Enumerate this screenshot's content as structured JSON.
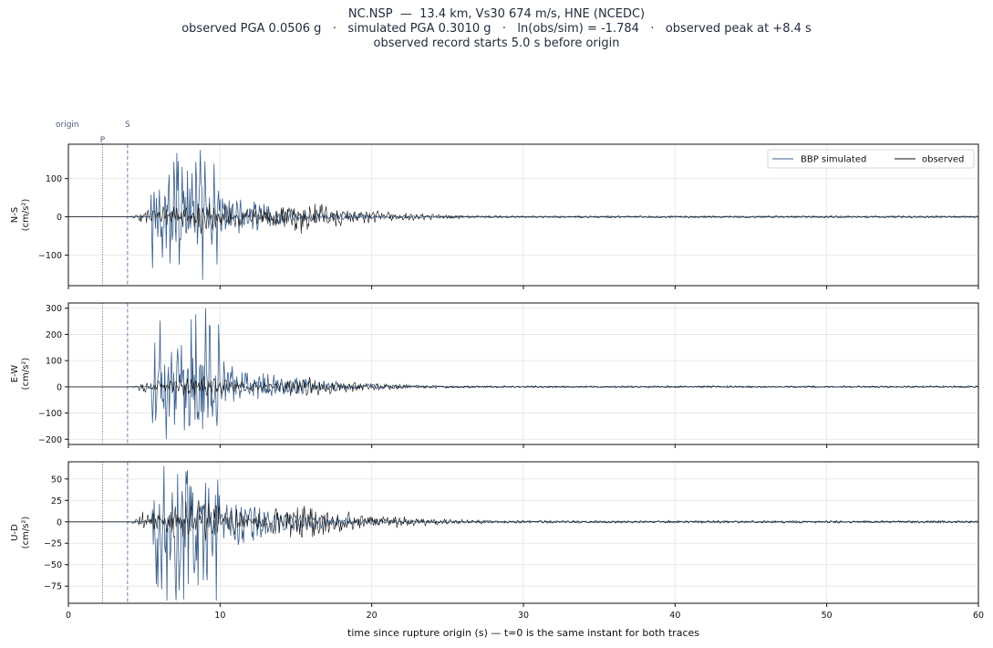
{
  "title": {
    "line1": "NC.NSP  —  13.4 km, Vs30 674 m/s, HNE (NCEDC)",
    "line2": "observed PGA 0.0506 g   ·   simulated PGA 0.3010 g   ·   ln(obs/sim) = -1.784   ·   observed peak at +8.4 s",
    "line3": "observed record starts 5.0 s before origin"
  },
  "markers": {
    "origin_label": "origin",
    "p_label": "P",
    "s_label": "S",
    "p_time": 2.25,
    "s_time": 3.9
  },
  "legend": {
    "simulated": "BBP simulated",
    "observed": "observed"
  },
  "colors": {
    "simulated": "#3b5f8a",
    "observed": "#111111",
    "p_line": "#7a7a8a",
    "s_line": "#6f7fb8"
  },
  "chart_data": {
    "type": "line",
    "xlabel": "time since rupture origin (s)   —   t=0 is the same instant for both traces",
    "xlim": [
      0,
      60
    ],
    "xticks": [
      0,
      10,
      20,
      30,
      40,
      50,
      60
    ],
    "series": [
      {
        "name": "BBP simulated"
      },
      {
        "name": "observed"
      }
    ],
    "panels": [
      {
        "ylabel": "N-S",
        "yunit": "(cm/s²)",
        "ylim": [
          -180,
          190
        ],
        "yticks": [
          -100,
          0,
          100
        ],
        "sim_peak_pos": 175,
        "sim_peak_neg": -165,
        "obs_peak_pos": 35,
        "obs_peak_neg": -45,
        "seed": 11
      },
      {
        "ylabel": "E-W",
        "yunit": "(cm/s²)",
        "ylim": [
          -220,
          320
        ],
        "yticks": [
          -200,
          -100,
          0,
          100,
          200,
          300
        ],
        "sim_peak_pos": 300,
        "sim_peak_neg": -200,
        "obs_peak_pos": 40,
        "obs_peak_neg": -35,
        "seed": 23
      },
      {
        "ylabel": "U-D",
        "yunit": "(cm/s²)",
        "ylim": [
          -95,
          70
        ],
        "yticks": [
          -75,
          -50,
          -25,
          0,
          25,
          50
        ],
        "sim_peak_pos": 65,
        "sim_peak_neg": -92,
        "obs_peak_pos": 25,
        "obs_peak_neg": -22,
        "seed": 37
      }
    ]
  }
}
